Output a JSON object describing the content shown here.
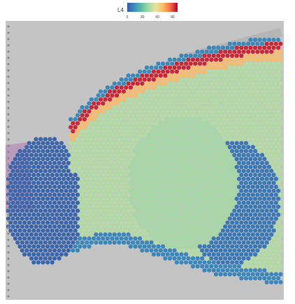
{
  "chart_data": {
    "type": "heatmap",
    "title": "",
    "legend": {
      "title": "L4",
      "placement": "top-center",
      "ticks": [
        "0",
        "30",
        "60",
        "90"
      ],
      "range": [
        0,
        100
      ]
    },
    "colorscale": [
      "#3b5aa6",
      "#3a8fc0",
      "#5fbfa4",
      "#a8dba4",
      "#e8e49c",
      "#fdb863",
      "#f46d43",
      "#b2002f"
    ],
    "background_color": "#c4c4c4",
    "tissue_stain_color": "#b07ab5",
    "spots": {
      "shape": "hexagonal-grid",
      "regions": [
        {
          "region": "outer-cortex",
          "value": 12
        },
        {
          "region": "layer-4-band",
          "value": 95
        },
        {
          "region": "adjacent-band",
          "value": 70
        },
        {
          "region": "inner-cortex",
          "value": 45
        },
        {
          "region": "striatum",
          "value": 42
        },
        {
          "region": "deep-structures",
          "value": 8
        },
        {
          "region": "olfactory-bulb",
          "value": 3
        }
      ]
    }
  }
}
